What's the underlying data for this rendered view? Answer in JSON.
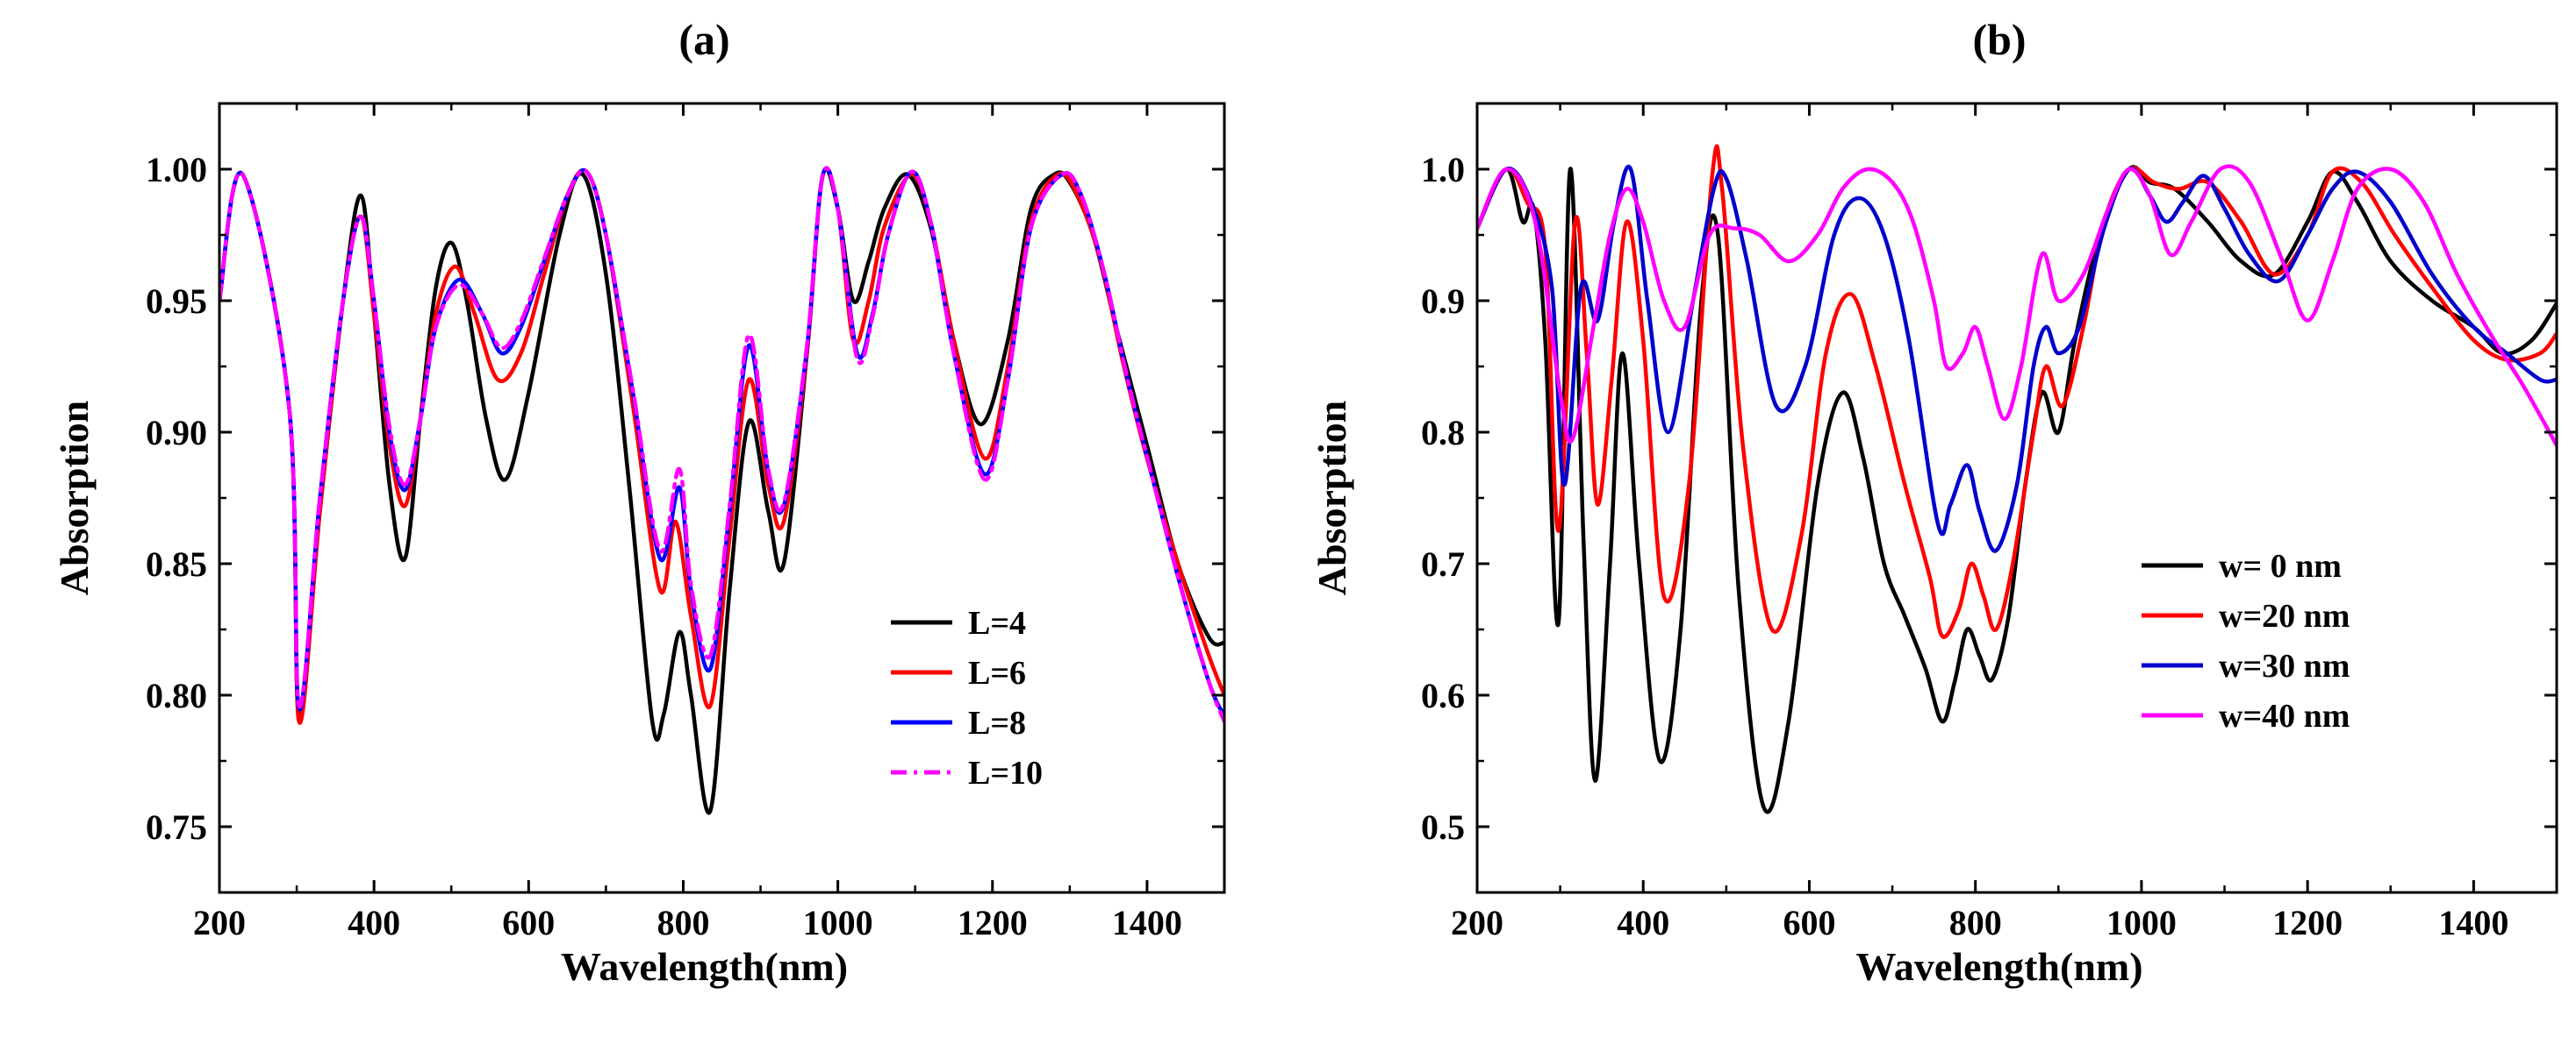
{
  "chart_data": [
    {
      "type": "line",
      "panel_label": "(a)",
      "xlabel": "Wavelength(nm)",
      "ylabel": "Absorption",
      "xlim": [
        200,
        1500
      ],
      "ylim": [
        0.725,
        1.025
      ],
      "xticks": [
        200,
        400,
        600,
        800,
        1000,
        1200,
        1400
      ],
      "xtick_labels": [
        "200",
        "400",
        "600",
        "800",
        "1000",
        "1200",
        "1400"
      ],
      "yticks": [
        0.75,
        0.8,
        0.85,
        0.9,
        0.95,
        1.0
      ],
      "ytick_labels": [
        "0.75",
        "0.80",
        "0.85",
        "0.90",
        "0.95",
        "1.00"
      ],
      "legend_position": "lower-right",
      "series": [
        {
          "name": "L=4",
          "color": "#000000",
          "dash": "solid",
          "x": [
            200,
            230,
            290,
            303,
            330,
            360,
            383,
            400,
            420,
            440,
            460,
            480,
            500,
            520,
            545,
            570,
            600,
            640,
            670,
            700,
            730,
            760,
            775,
            795,
            810,
            835,
            860,
            885,
            910,
            930,
            960,
            980,
            1000,
            1020,
            1040,
            1060,
            1090,
            1120,
            1150,
            1185,
            1220,
            1250,
            1280,
            1300,
            1330,
            1360,
            1400,
            1440,
            1480,
            1500
          ],
          "y": [
            0.95,
            0.998,
            0.91,
            0.792,
            0.87,
            0.95,
            0.99,
            0.945,
            0.88,
            0.852,
            0.905,
            0.955,
            0.972,
            0.95,
            0.905,
            0.882,
            0.915,
            0.975,
            0.998,
            0.96,
            0.88,
            0.79,
            0.793,
            0.824,
            0.8,
            0.756,
            0.84,
            0.904,
            0.87,
            0.85,
            0.93,
            0.997,
            0.985,
            0.95,
            0.965,
            0.985,
            0.998,
            0.978,
            0.935,
            0.903,
            0.935,
            0.985,
            0.998,
            0.995,
            0.975,
            0.94,
            0.895,
            0.85,
            0.822,
            0.82
          ]
        },
        {
          "name": "L=6",
          "color": "#ff0000",
          "dash": "solid",
          "x": [
            200,
            230,
            290,
            303,
            330,
            360,
            383,
            400,
            420,
            440,
            460,
            480,
            505,
            530,
            560,
            590,
            620,
            650,
            675,
            700,
            735,
            770,
            790,
            810,
            835,
            860,
            885,
            910,
            930,
            960,
            980,
            1000,
            1020,
            1040,
            1060,
            1095,
            1120,
            1150,
            1190,
            1220,
            1250,
            1285,
            1310,
            1340,
            1370,
            1400,
            1440,
            1480,
            1500
          ],
          "y": [
            0.95,
            0.998,
            0.91,
            0.79,
            0.87,
            0.95,
            0.982,
            0.945,
            0.895,
            0.872,
            0.905,
            0.945,
            0.963,
            0.945,
            0.92,
            0.93,
            0.96,
            0.99,
            0.999,
            0.975,
            0.91,
            0.84,
            0.866,
            0.83,
            0.796,
            0.86,
            0.92,
            0.88,
            0.866,
            0.93,
            0.997,
            0.985,
            0.935,
            0.95,
            0.978,
            0.998,
            0.98,
            0.935,
            0.89,
            0.925,
            0.98,
            0.998,
            0.99,
            0.965,
            0.925,
            0.89,
            0.85,
            0.815,
            0.8
          ]
        },
        {
          "name": "L=8",
          "color": "#0000ff",
          "dash": "solid",
          "x": [
            200,
            230,
            290,
            303,
            330,
            360,
            383,
            400,
            420,
            440,
            460,
            480,
            510,
            540,
            565,
            590,
            620,
            650,
            675,
            700,
            735,
            770,
            795,
            810,
            835,
            860,
            885,
            910,
            930,
            960,
            980,
            1000,
            1025,
            1045,
            1065,
            1095,
            1120,
            1150,
            1190,
            1220,
            1250,
            1290,
            1315,
            1345,
            1375,
            1405,
            1440,
            1480,
            1500
          ],
          "y": [
            0.95,
            0.998,
            0.91,
            0.795,
            0.875,
            0.95,
            0.982,
            0.95,
            0.9,
            0.878,
            0.905,
            0.94,
            0.958,
            0.945,
            0.93,
            0.94,
            0.965,
            0.99,
            0.999,
            0.975,
            0.915,
            0.852,
            0.879,
            0.84,
            0.81,
            0.87,
            0.933,
            0.885,
            0.872,
            0.932,
            0.997,
            0.985,
            0.93,
            0.945,
            0.975,
            0.999,
            0.98,
            0.93,
            0.884,
            0.92,
            0.978,
            0.998,
            0.99,
            0.96,
            0.92,
            0.885,
            0.845,
            0.805,
            0.792
          ]
        },
        {
          "name": "L=10",
          "color": "#ff00ff",
          "dash": "dashdot",
          "x": [
            200,
            230,
            290,
            303,
            330,
            360,
            383,
            400,
            420,
            440,
            460,
            480,
            510,
            540,
            565,
            590,
            620,
            650,
            675,
            700,
            735,
            770,
            795,
            810,
            835,
            860,
            885,
            910,
            930,
            960,
            980,
            1000,
            1025,
            1045,
            1065,
            1095,
            1120,
            1150,
            1190,
            1220,
            1250,
            1290,
            1315,
            1345,
            1375,
            1405,
            1440,
            1480,
            1500
          ],
          "y": [
            0.95,
            0.998,
            0.91,
            0.796,
            0.875,
            0.95,
            0.982,
            0.95,
            0.902,
            0.88,
            0.905,
            0.94,
            0.956,
            0.945,
            0.932,
            0.942,
            0.966,
            0.99,
            0.999,
            0.975,
            0.916,
            0.855,
            0.886,
            0.842,
            0.815,
            0.872,
            0.937,
            0.886,
            0.873,
            0.933,
            0.997,
            0.985,
            0.928,
            0.944,
            0.975,
            0.999,
            0.98,
            0.93,
            0.882,
            0.92,
            0.978,
            0.998,
            0.99,
            0.96,
            0.92,
            0.885,
            0.845,
            0.805,
            0.79
          ]
        }
      ]
    },
    {
      "type": "line",
      "panel_label": "(b)",
      "xlabel": "Wavelength(nm)",
      "ylabel": "Absorption",
      "xlim": [
        200,
        1500
      ],
      "ylim": [
        0.45,
        1.05
      ],
      "xticks": [
        200,
        400,
        600,
        800,
        1000,
        1200,
        1400
      ],
      "xtick_labels": [
        "200",
        "400",
        "600",
        "800",
        "1000",
        "1200",
        "1400"
      ],
      "yticks": [
        0.5,
        0.6,
        0.7,
        0.8,
        0.9,
        1.0
      ],
      "ytick_labels": [
        "0.5",
        "0.6",
        "0.7",
        "0.8",
        "0.9",
        "1.0"
      ],
      "legend_position": "lower-right",
      "series": [
        {
          "name": "w= 0  nm",
          "color": "#000000",
          "dash": "solid",
          "x": [
            200,
            235,
            255,
            268,
            282,
            298,
            312,
            328,
            342,
            360,
            375,
            395,
            420,
            445,
            470,
            490,
            515,
            545,
            575,
            610,
            640,
            665,
            690,
            715,
            740,
            760,
            775,
            790,
            805,
            820,
            840,
            860,
            880,
            900,
            920,
            950,
            985,
            1010,
            1040,
            1080,
            1120,
            1160,
            1200,
            1230,
            1260,
            1300,
            1350,
            1400,
            1435,
            1470,
            1500
          ],
          "y": [
            0.955,
            1.0,
            0.96,
            0.97,
            0.87,
            0.655,
            1.0,
            0.72,
            0.535,
            0.7,
            0.86,
            0.7,
            0.55,
            0.65,
            0.9,
            0.95,
            0.68,
            0.515,
            0.58,
            0.76,
            0.83,
            0.78,
            0.7,
            0.66,
            0.62,
            0.58,
            0.61,
            0.65,
            0.63,
            0.612,
            0.66,
            0.76,
            0.83,
            0.8,
            0.87,
            0.95,
            1.0,
            0.99,
            0.985,
            0.96,
            0.93,
            0.92,
            0.96,
            0.998,
            0.975,
            0.93,
            0.9,
            0.88,
            0.86,
            0.87,
            0.898
          ]
        },
        {
          "name": "w=20 nm",
          "color": "#ff0000",
          "dash": "solid",
          "x": [
            200,
            235,
            260,
            282,
            298,
            318,
            332,
            345,
            362,
            380,
            400,
            425,
            455,
            483,
            495,
            520,
            555,
            590,
            620,
            650,
            680,
            715,
            745,
            760,
            780,
            795,
            810,
            825,
            845,
            870,
            885,
            905,
            930,
            955,
            985,
            1015,
            1045,
            1080,
            1120,
            1160,
            1200,
            1230,
            1265,
            1305,
            1350,
            1400,
            1440,
            1480,
            1500
          ],
          "y": [
            0.955,
            1.0,
            0.975,
            0.94,
            0.725,
            0.96,
            0.86,
            0.745,
            0.84,
            0.96,
            0.87,
            0.675,
            0.76,
            0.995,
            0.985,
            0.79,
            0.65,
            0.72,
            0.86,
            0.905,
            0.85,
            0.76,
            0.69,
            0.645,
            0.665,
            0.7,
            0.675,
            0.65,
            0.7,
            0.8,
            0.85,
            0.82,
            0.88,
            0.96,
            1.0,
            0.99,
            0.985,
            0.99,
            0.96,
            0.92,
            0.95,
            0.998,
            0.99,
            0.95,
            0.91,
            0.87,
            0.855,
            0.86,
            0.875
          ]
        },
        {
          "name": "w=30 nm",
          "color": "#0000cc",
          "dash": "solid",
          "x": [
            200,
            235,
            265,
            290,
            305,
            325,
            345,
            365,
            385,
            405,
            430,
            460,
            485,
            500,
            525,
            560,
            595,
            630,
            660,
            690,
            720,
            755,
            770,
            790,
            805,
            825,
            850,
            870,
            885,
            900,
            925,
            955,
            985,
            1010,
            1030,
            1050,
            1075,
            1100,
            1130,
            1165,
            1200,
            1230,
            1260,
            1300,
            1350,
            1400,
            1440,
            1480,
            1500
          ],
          "y": [
            0.955,
            1.0,
            0.975,
            0.91,
            0.76,
            0.91,
            0.885,
            0.96,
            1.0,
            0.9,
            0.8,
            0.9,
            0.985,
            0.993,
            0.93,
            0.82,
            0.85,
            0.95,
            0.978,
            0.95,
            0.87,
            0.73,
            0.745,
            0.775,
            0.74,
            0.71,
            0.76,
            0.85,
            0.88,
            0.86,
            0.88,
            0.955,
            1.0,
            0.98,
            0.96,
            0.975,
            0.995,
            0.97,
            0.935,
            0.915,
            0.95,
            0.985,
            0.998,
            0.975,
            0.92,
            0.88,
            0.86,
            0.84,
            0.84
          ]
        },
        {
          "name": "w=40 nm",
          "color": "#ff00ff",
          "dash": "solid",
          "x": [
            200,
            235,
            270,
            300,
            315,
            340,
            360,
            380,
            400,
            425,
            450,
            480,
            510,
            540,
            575,
            610,
            640,
            670,
            700,
            725,
            750,
            765,
            785,
            800,
            815,
            835,
            855,
            880,
            900,
            930,
            960,
            985,
            1010,
            1035,
            1060,
            1095,
            1130,
            1170,
            1200,
            1230,
            1260,
            1300,
            1340,
            1380,
            1420,
            1460,
            1500
          ],
          "y": [
            0.955,
            1.0,
            0.96,
            0.83,
            0.795,
            0.88,
            0.95,
            0.985,
            0.96,
            0.9,
            0.88,
            0.95,
            0.955,
            0.95,
            0.93,
            0.95,
            0.985,
            1.0,
            0.99,
            0.96,
            0.9,
            0.85,
            0.86,
            0.88,
            0.85,
            0.81,
            0.85,
            0.935,
            0.9,
            0.92,
            0.97,
            1.0,
            0.98,
            0.935,
            0.96,
            1.0,
            0.99,
            0.93,
            0.885,
            0.93,
            0.985,
            1.0,
            0.975,
            0.92,
            0.875,
            0.835,
            0.79
          ]
        }
      ]
    }
  ]
}
